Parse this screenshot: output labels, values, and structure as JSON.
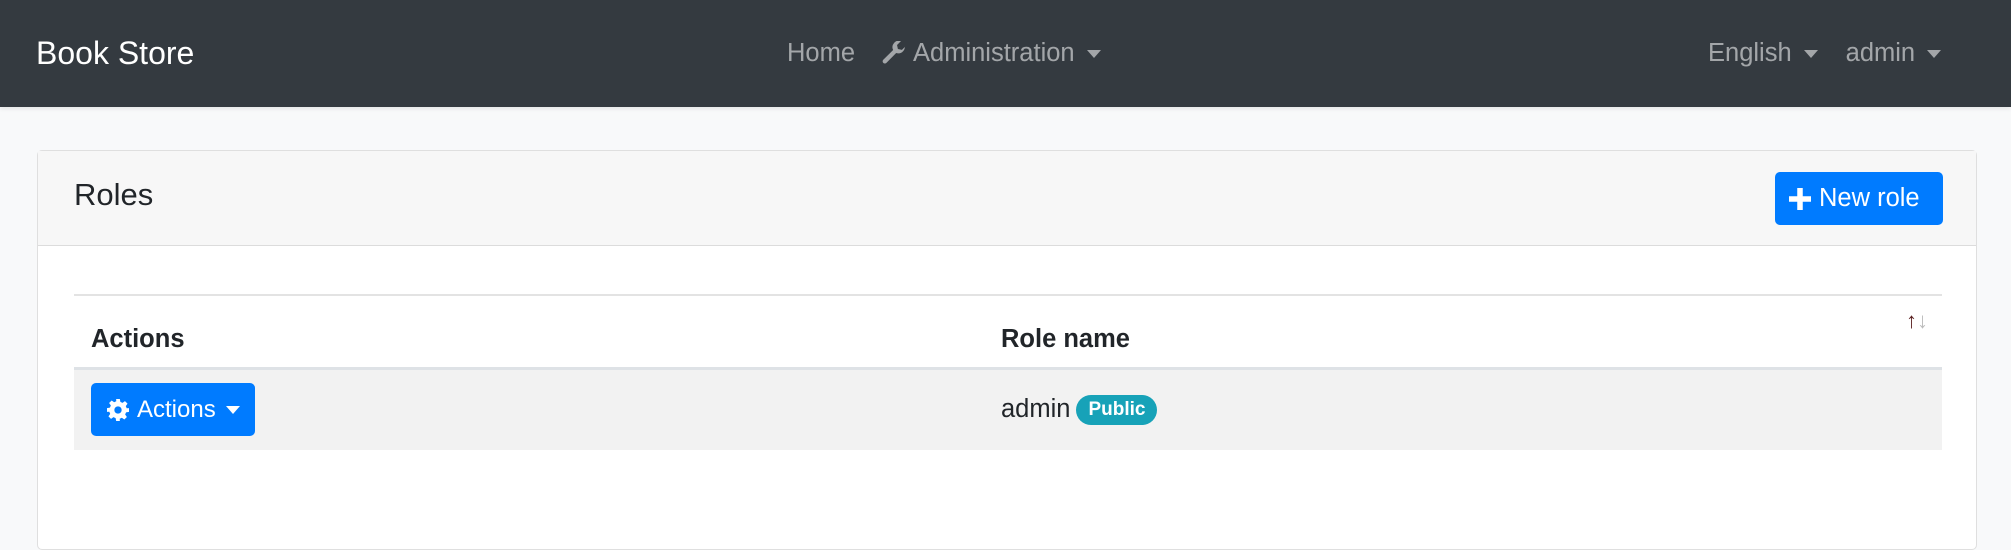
{
  "navbar": {
    "brand": "Book Store",
    "home": "Home",
    "administration": "Administration",
    "language": "English",
    "user": "admin"
  },
  "card": {
    "title": "Roles",
    "new_role_label": "New role"
  },
  "table": {
    "columns": [
      "Actions",
      "Role name"
    ],
    "rows": [
      {
        "actions_label": "Actions",
        "role_name": "admin",
        "badge": "Public"
      }
    ]
  },
  "colors": {
    "navbar": "#343a40",
    "primary": "#007bff",
    "badge": "#17a2b8"
  },
  "icons": {
    "admin_menu": "wrench-icon",
    "new_role": "plus-icon",
    "actions": "gear-icon",
    "sort": "sort-arrows-icon"
  }
}
